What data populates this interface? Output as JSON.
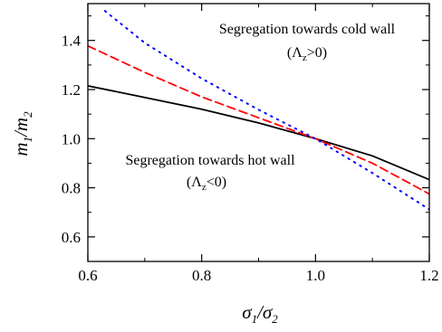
{
  "chart_data": {
    "type": "line",
    "xlabel": "σ₁/σ₂",
    "ylabel": "m₁/m₂",
    "xlim": [
      0.6,
      1.2
    ],
    "ylim": [
      0.5,
      1.55
    ],
    "xticks": [
      0.6,
      0.8,
      1.0,
      1.2
    ],
    "yticks": [
      0.6,
      0.8,
      1.0,
      1.2,
      1.4
    ],
    "xtick_labels": [
      "0.6",
      "0.8",
      "1.0",
      "1.2"
    ],
    "ytick_labels": [
      "0.6",
      "0.8",
      "1.0",
      "1.2",
      "1.4"
    ],
    "grid": false,
    "legend": "none",
    "series": [
      {
        "style": "solid",
        "color": "#000000",
        "x": [
          0.6,
          0.7,
          0.8,
          0.9,
          1.0,
          1.1,
          1.2
        ],
        "y": [
          1.215,
          1.168,
          1.12,
          1.064,
          1.0,
          0.93,
          0.833
        ]
      },
      {
        "style": "dashed",
        "color": "#ff0000",
        "x": [
          0.6,
          0.7,
          0.8,
          0.9,
          1.0,
          1.1,
          1.2
        ],
        "y": [
          1.378,
          1.27,
          1.17,
          1.085,
          1.0,
          0.9,
          0.775
        ]
      },
      {
        "style": "dotted",
        "color": "#0000ff",
        "x": [
          0.63,
          0.7,
          0.8,
          0.9,
          1.0,
          1.1,
          1.2
        ],
        "y": [
          1.52,
          1.39,
          1.245,
          1.118,
          1.0,
          0.86,
          0.712
        ]
      }
    ],
    "annotations": [
      {
        "line1": "Segregation towards cold wall",
        "sym": "(Λ",
        "sub": "z",
        "rel": ">0)"
      },
      {
        "line1": "Segregation towards hot wall",
        "sym": "(Λ",
        "sub": "z",
        "rel": "<0)"
      }
    ]
  },
  "axis_text": {
    "x_main1": "σ",
    "x_sub1": "1",
    "x_slash": "/",
    "x_main2": "σ",
    "x_sub2": "2",
    "y_main1": "m",
    "y_sub1": "1",
    "y_slash": "/",
    "y_main2": "m",
    "y_sub2": "2"
  }
}
